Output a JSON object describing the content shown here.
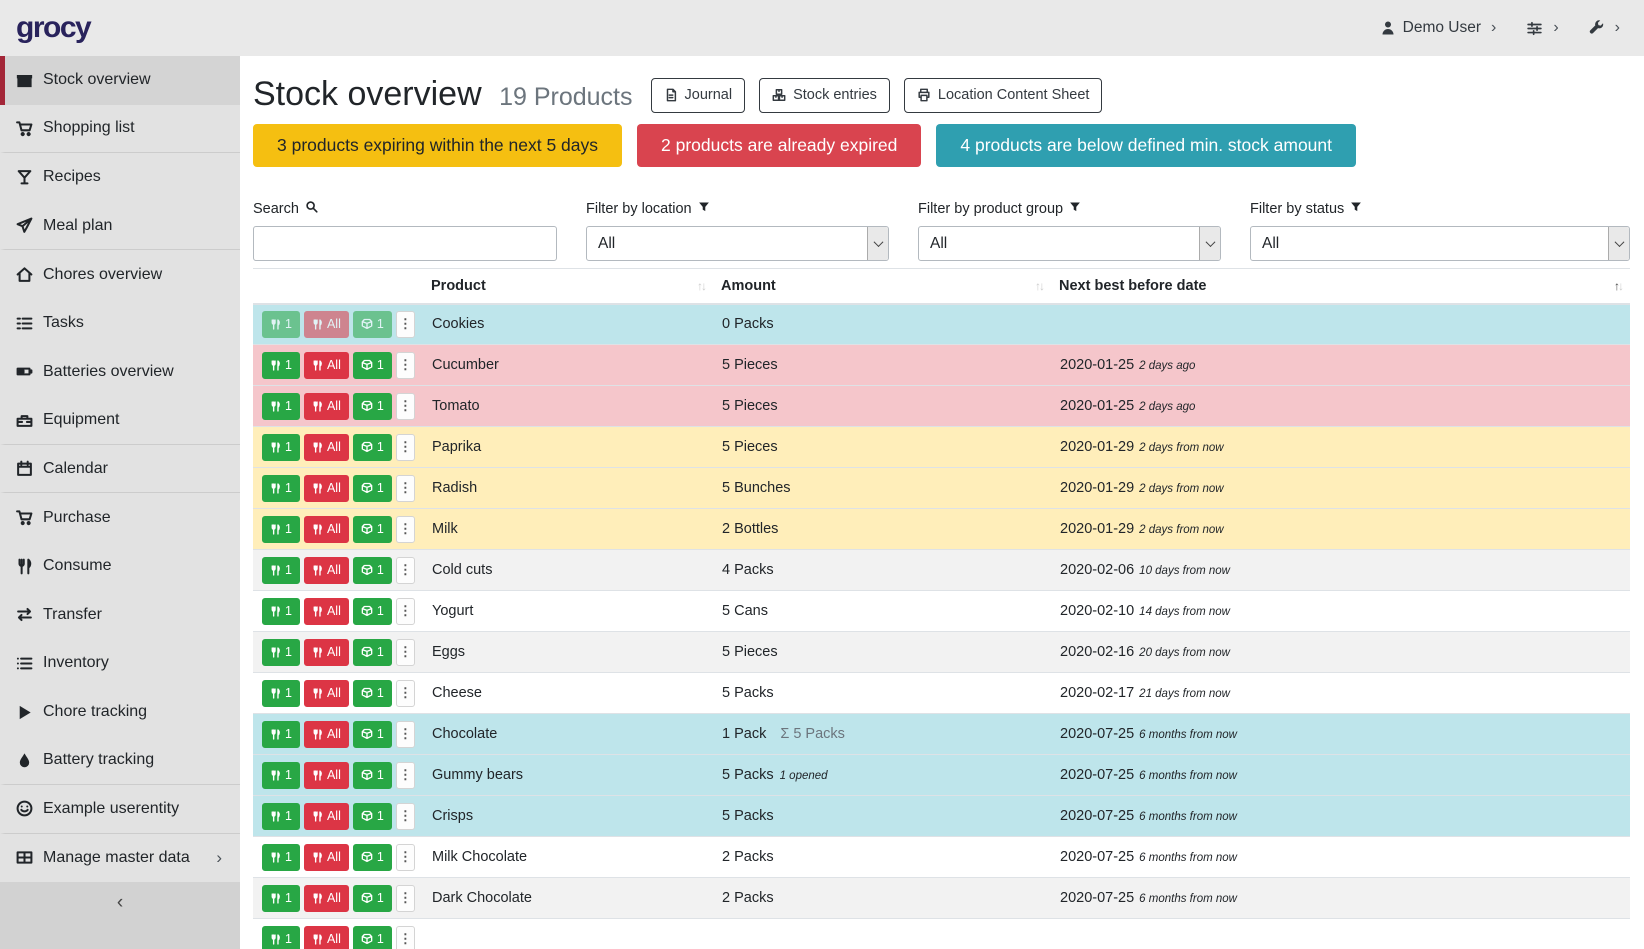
{
  "navbar": {
    "logo": "grocy",
    "user": {
      "label": "Demo User"
    }
  },
  "sidebar": {
    "collapse_glyph": "‹",
    "items": [
      {
        "label": "Stock overview",
        "icon": "box-solid",
        "active": true
      },
      {
        "label": "Shopping list",
        "icon": "cart",
        "divider_after": true
      },
      {
        "label": "Recipes",
        "icon": "cocktail"
      },
      {
        "label": "Meal plan",
        "icon": "paper-plane",
        "divider_after": true
      },
      {
        "label": "Chores overview",
        "icon": "home"
      },
      {
        "label": "Tasks",
        "icon": "tasks"
      },
      {
        "label": "Batteries overview",
        "icon": "battery"
      },
      {
        "label": "Equipment",
        "icon": "toolbox",
        "divider_after": true
      },
      {
        "label": "Calendar",
        "icon": "calendar",
        "divider_after": true
      },
      {
        "label": "Purchase",
        "icon": "cart"
      },
      {
        "label": "Consume",
        "icon": "utensils"
      },
      {
        "label": "Transfer",
        "icon": "exchange"
      },
      {
        "label": "Inventory",
        "icon": "list"
      },
      {
        "label": "Chore tracking",
        "icon": "play"
      },
      {
        "label": "Battery tracking",
        "icon": "drop",
        "divider_after": true
      },
      {
        "label": "Example userentity",
        "icon": "smile",
        "divider_after": true
      },
      {
        "label": "Manage master data",
        "icon": "table",
        "chevron": true
      }
    ]
  },
  "page": {
    "title": "Stock overview",
    "subtitle": "19 Products",
    "toolbar": [
      {
        "label": "Journal",
        "icon": "file"
      },
      {
        "label": "Stock entries",
        "icon": "boxes"
      },
      {
        "label": "Location Content Sheet",
        "icon": "print"
      }
    ]
  },
  "banners": [
    {
      "text": "3 products expiring within the next 5 days",
      "type": "warning"
    },
    {
      "text": "2 products are already expired",
      "type": "danger"
    },
    {
      "text": "4 products are below defined min. stock amount",
      "type": "info"
    }
  ],
  "filters": {
    "search": {
      "label": "Search",
      "value": ""
    },
    "location": {
      "label": "Filter by location",
      "value": "All"
    },
    "product_group": {
      "label": "Filter by product group",
      "value": "All"
    },
    "status": {
      "label": "Filter by status",
      "value": "All"
    }
  },
  "table": {
    "columns": [
      {
        "label": "Product",
        "sort": "none"
      },
      {
        "label": "Amount",
        "sort": "none"
      },
      {
        "label": "Next best before date",
        "sort": "asc"
      }
    ],
    "row_buttons": {
      "consume_one": "1",
      "consume_all": "All",
      "open_one": "1"
    },
    "rows": [
      {
        "product": "Cookies",
        "amount": "0 Packs",
        "date": "",
        "timeago": "",
        "status": "info",
        "disabled": true
      },
      {
        "product": "Cucumber",
        "amount": "5 Pieces",
        "date": "2020-01-25",
        "timeago": "2 days ago",
        "status": "danger"
      },
      {
        "product": "Tomato",
        "amount": "5 Pieces",
        "date": "2020-01-25",
        "timeago": "2 days ago",
        "status": "danger"
      },
      {
        "product": "Paprika",
        "amount": "5 Pieces",
        "date": "2020-01-29",
        "timeago": "2 days from now",
        "status": "warning"
      },
      {
        "product": "Radish",
        "amount": "5 Bunches",
        "date": "2020-01-29",
        "timeago": "2 days from now",
        "status": "warning"
      },
      {
        "product": "Milk",
        "amount": "2 Bottles",
        "date": "2020-01-29",
        "timeago": "2 days from now",
        "status": "warning"
      },
      {
        "product": "Cold cuts",
        "amount": "4 Packs",
        "date": "2020-02-06",
        "timeago": "10 days from now"
      },
      {
        "product": "Yogurt",
        "amount": "5 Cans",
        "date": "2020-02-10",
        "timeago": "14 days from now"
      },
      {
        "product": "Eggs",
        "amount": "5 Pieces",
        "date": "2020-02-16",
        "timeago": "20 days from now"
      },
      {
        "product": "Cheese",
        "amount": "5 Packs",
        "date": "2020-02-17",
        "timeago": "21 days from now"
      },
      {
        "product": "Chocolate",
        "amount": "1 Pack",
        "amount_aggregated": "5 Packs",
        "date": "2020-07-25",
        "timeago": "6 months from now",
        "status": "info"
      },
      {
        "product": "Gummy bears",
        "amount": "5 Packs",
        "amount_opened": "1 opened",
        "date": "2020-07-25",
        "timeago": "6 months from now",
        "status": "info"
      },
      {
        "product": "Crisps",
        "amount": "5 Packs",
        "date": "2020-07-25",
        "timeago": "6 months from now",
        "status": "info"
      },
      {
        "product": "Milk Chocolate",
        "amount": "2 Packs",
        "date": "2020-07-25",
        "timeago": "6 months from now"
      },
      {
        "product": "Dark Chocolate",
        "amount": "2 Packs",
        "date": "2020-07-25",
        "timeago": "6 months from now"
      },
      {
        "product": "",
        "amount": "",
        "date": "",
        "timeago": "",
        "partial": true
      }
    ]
  },
  "glyphs": {
    "chevron_right": "›",
    "collapse_left": "‹",
    "ellipsis_v": "⋮",
    "sigma": "Σ",
    "sort_up": "↑",
    "sort_down": "↓"
  },
  "colors": {
    "banner_warning": "#f5bf11",
    "banner_danger": "#d9444f",
    "banner_info": "#2f9fb0",
    "btn_success": "#28a745",
    "btn_danger": "#dc3545",
    "sidebar_active_border": "#a32638",
    "logo": "#29235c",
    "row_info": "#bee5eb",
    "row_danger": "#f5c6cb",
    "row_warning": "#ffeeba"
  }
}
